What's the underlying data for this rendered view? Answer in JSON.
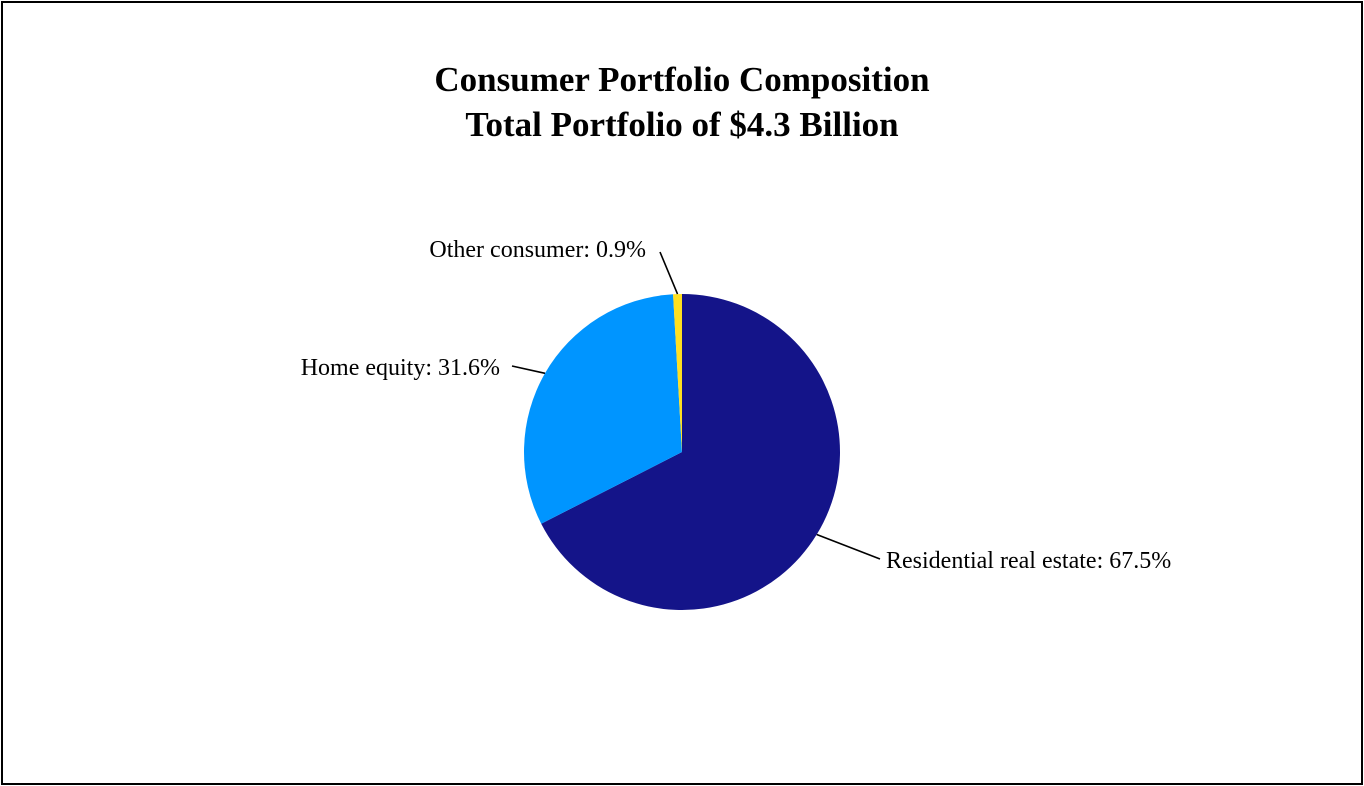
{
  "chart_data": {
    "type": "pie",
    "title": "Consumer Portfolio Composition",
    "subtitle": "Total Portfolio of $4.3 Billion",
    "slices": [
      {
        "label": "Residential real estate",
        "value": 67.5,
        "display": "Residential real estate: 67.5%",
        "color": "#141489"
      },
      {
        "label": "Home equity",
        "value": 31.6,
        "display": "Home equity: 31.6%",
        "color": "#0095FF"
      },
      {
        "label": "Other consumer",
        "value": 0.9,
        "display": "Other consumer: 0.9%",
        "color": "#FFE020"
      }
    ],
    "start_angle_deg": 0,
    "direction": "clockwise",
    "legend": "none"
  }
}
